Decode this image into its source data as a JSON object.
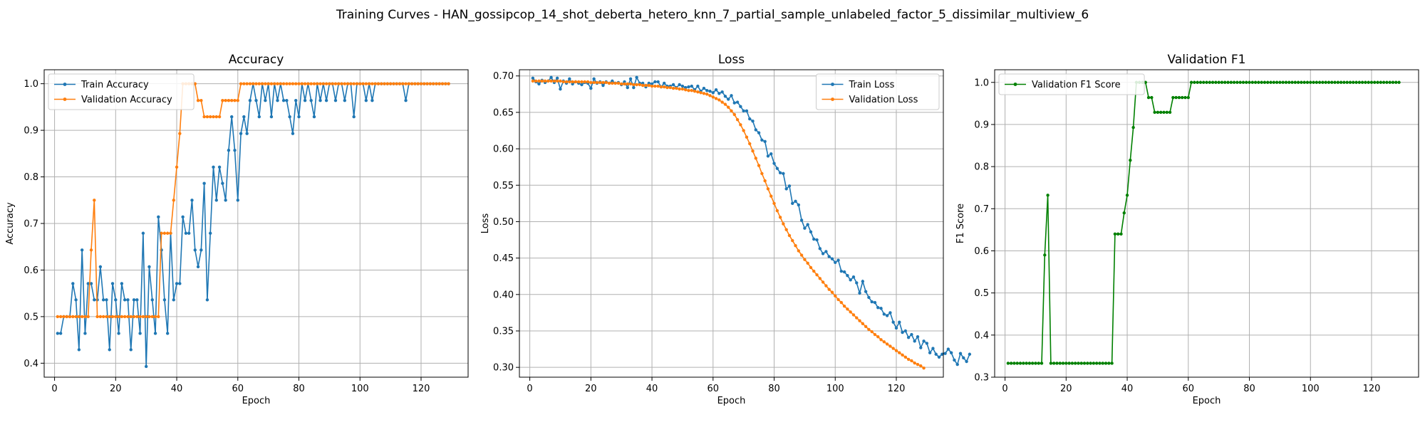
{
  "figure": {
    "suptitle": "Training Curves - HAN_gossipcop_14_shot_deberta_hetero_knn_7_partial_sample_unlabeled_factor_5_dissimilar_multiview_6"
  },
  "colors": {
    "blue": "#1f77b4",
    "orange": "#ff7f0e",
    "green": "#008000",
    "grid": "#b0b0b0"
  },
  "chart_data": [
    {
      "type": "line",
      "title": "Accuracy",
      "xlabel": "Epoch",
      "ylabel": "Accuracy",
      "xlim": [
        -3.4,
        135.4
      ],
      "ylim": [
        0.37,
        1.03
      ],
      "xticks": [
        0,
        20,
        40,
        60,
        80,
        100,
        120
      ],
      "yticks": [
        0.4,
        0.5,
        0.6,
        0.7,
        0.8,
        0.9,
        1.0
      ],
      "ytick_labels": [
        "0.4",
        "0.5",
        "0.6",
        "0.7",
        "0.8",
        "0.9",
        "1.0"
      ],
      "grid": true,
      "legend": "upper left",
      "series": [
        {
          "name": "Train Accuracy",
          "color": "#1f77b4",
          "y": [
            0.464,
            0.464,
            0.5,
            0.5,
            0.5,
            0.571,
            0.536,
            0.429,
            0.643,
            0.464,
            0.571,
            0.571,
            0.536,
            0.536,
            0.607,
            0.536,
            0.536,
            0.429,
            0.571,
            0.536,
            0.464,
            0.571,
            0.536,
            0.536,
            0.429,
            0.536,
            0.536,
            0.464,
            0.679,
            0.393,
            0.607,
            0.536,
            0.464,
            0.714,
            0.643,
            0.536,
            0.464,
            0.679,
            0.536,
            0.571,
            0.571,
            0.714,
            0.679,
            0.679,
            0.75,
            0.643,
            0.607,
            0.643,
            0.786,
            0.536,
            0.679,
            0.821,
            0.75,
            0.821,
            0.786,
            0.75,
            0.857,
            0.929,
            0.857,
            0.75,
            0.893,
            0.929,
            0.893,
            0.964,
            1.0,
            0.964,
            0.929,
            1.0,
            0.964,
            1.0,
            0.929,
            1.0,
            0.964,
            1.0,
            0.964,
            0.964,
            0.929,
            0.893,
            0.964,
            0.929,
            1.0,
            0.964,
            1.0,
            0.964,
            0.929,
            1.0,
            0.964,
            1.0,
            0.964,
            1.0,
            1.0,
            0.964,
            1.0,
            1.0,
            0.964,
            1.0,
            1.0,
            0.929,
            1.0,
            1.0,
            1.0,
            0.964,
            1.0,
            0.964,
            1.0,
            1.0,
            1.0,
            1.0,
            1.0,
            1.0,
            1.0,
            1.0,
            1.0,
            1.0,
            0.964,
            1.0,
            1.0,
            1.0,
            1.0,
            1.0,
            1.0,
            1.0,
            1.0,
            1.0,
            1.0,
            1.0,
            1.0,
            1.0,
            1.0
          ]
        },
        {
          "name": "Validation Accuracy",
          "color": "#ff7f0e",
          "y": [
            0.5,
            0.5,
            0.5,
            0.5,
            0.5,
            0.5,
            0.5,
            0.5,
            0.5,
            0.5,
            0.5,
            0.643,
            0.75,
            0.5,
            0.5,
            0.5,
            0.5,
            0.5,
            0.5,
            0.5,
            0.5,
            0.5,
            0.5,
            0.5,
            0.5,
            0.5,
            0.5,
            0.5,
            0.5,
            0.5,
            0.5,
            0.5,
            0.5,
            0.5,
            0.679,
            0.679,
            0.679,
            0.679,
            0.75,
            0.821,
            0.893,
            1.0,
            1.0,
            1.0,
            1.0,
            1.0,
            0.964,
            0.964,
            0.929,
            0.929,
            0.929,
            0.929,
            0.929,
            0.929,
            0.964,
            0.964,
            0.964,
            0.964,
            0.964,
            0.964,
            1.0,
            1.0,
            1.0,
            1.0,
            1.0,
            1.0,
            1.0,
            1.0,
            1.0,
            1.0,
            1.0,
            1.0,
            1.0,
            1.0,
            1.0,
            1.0,
            1.0,
            1.0,
            1.0,
            1.0,
            1.0,
            1.0,
            1.0,
            1.0,
            1.0,
            1.0,
            1.0,
            1.0,
            1.0,
            1.0,
            1.0,
            1.0,
            1.0,
            1.0,
            1.0,
            1.0,
            1.0,
            1.0,
            1.0,
            1.0,
            1.0,
            1.0,
            1.0,
            1.0,
            1.0,
            1.0,
            1.0,
            1.0,
            1.0,
            1.0,
            1.0,
            1.0,
            1.0,
            1.0,
            1.0,
            1.0,
            1.0,
            1.0,
            1.0,
            1.0,
            1.0,
            1.0,
            1.0,
            1.0,
            1.0,
            1.0,
            1.0,
            1.0,
            1.0
          ]
        }
      ]
    },
    {
      "type": "line",
      "title": "Loss",
      "xlabel": "Epoch",
      "ylabel": "Loss",
      "xlim": [
        -3.4,
        135.4
      ],
      "ylim": [
        0.2865,
        0.7085
      ],
      "xticks": [
        0,
        20,
        40,
        60,
        80,
        100,
        120
      ],
      "yticks": [
        0.3,
        0.35,
        0.4,
        0.45,
        0.5,
        0.55,
        0.6,
        0.65,
        0.7
      ],
      "ytick_labels": [
        "0.30",
        "0.35",
        "0.40",
        "0.45",
        "0.50",
        "0.55",
        "0.60",
        "0.65",
        "0.70"
      ],
      "grid": true,
      "legend": "upper right",
      "series": [
        {
          "name": "Train Loss",
          "color": "#1f77b4",
          "y": [
            0.697,
            0.692,
            0.689,
            0.694,
            0.691,
            0.693,
            0.698,
            0.691,
            0.697,
            0.682,
            0.693,
            0.69,
            0.696,
            0.689,
            0.692,
            0.69,
            0.688,
            0.691,
            0.69,
            0.683,
            0.696,
            0.69,
            0.692,
            0.687,
            0.692,
            0.69,
            0.693,
            0.69,
            0.691,
            0.688,
            0.692,
            0.684,
            0.696,
            0.684,
            0.698,
            0.69,
            0.69,
            0.685,
            0.69,
            0.689,
            0.692,
            0.692,
            0.685,
            0.69,
            0.686,
            0.686,
            0.688,
            0.684,
            0.688,
            0.686,
            0.684,
            0.685,
            0.686,
            0.681,
            0.686,
            0.679,
            0.683,
            0.68,
            0.679,
            0.677,
            0.681,
            0.676,
            0.678,
            0.672,
            0.668,
            0.673,
            0.663,
            0.664,
            0.658,
            0.652,
            0.652,
            0.641,
            0.638,
            0.626,
            0.622,
            0.612,
            0.61,
            0.59,
            0.593,
            0.58,
            0.573,
            0.567,
            0.566,
            0.545,
            0.549,
            0.525,
            0.528,
            0.523,
            0.502,
            0.491,
            0.496,
            0.486,
            0.476,
            0.475,
            0.463,
            0.456,
            0.459,
            0.452,
            0.449,
            0.444,
            0.447,
            0.432,
            0.431,
            0.426,
            0.42,
            0.424,
            0.416,
            0.402,
            0.418,
            0.404,
            0.396,
            0.39,
            0.389,
            0.382,
            0.381,
            0.373,
            0.371,
            0.375,
            0.362,
            0.354,
            0.362,
            0.348,
            0.35,
            0.341,
            0.345,
            0.336,
            0.342,
            0.327,
            0.336,
            0.333,
            0.32,
            0.326,
            0.318,
            0.314,
            0.318,
            0.319,
            0.325,
            0.32,
            0.31,
            0.304,
            0.319,
            0.313,
            0.308,
            0.318
          ]
        },
        {
          "name": "Validation Loss",
          "color": "#ff7f0e",
          "y": [
            0.693,
            0.693,
            0.693,
            0.693,
            0.693,
            0.693,
            0.693,
            0.693,
            0.693,
            0.693,
            0.692,
            0.692,
            0.692,
            0.692,
            0.692,
            0.692,
            0.692,
            0.692,
            0.692,
            0.691,
            0.691,
            0.691,
            0.691,
            0.691,
            0.691,
            0.69,
            0.69,
            0.69,
            0.69,
            0.689,
            0.689,
            0.689,
            0.689,
            0.688,
            0.688,
            0.688,
            0.687,
            0.687,
            0.687,
            0.686,
            0.686,
            0.686,
            0.685,
            0.685,
            0.684,
            0.684,
            0.683,
            0.683,
            0.682,
            0.682,
            0.681,
            0.68,
            0.68,
            0.679,
            0.678,
            0.677,
            0.676,
            0.675,
            0.673,
            0.671,
            0.669,
            0.667,
            0.664,
            0.661,
            0.657,
            0.652,
            0.647,
            0.64,
            0.633,
            0.625,
            0.616,
            0.607,
            0.597,
            0.587,
            0.577,
            0.566,
            0.556,
            0.545,
            0.535,
            0.525,
            0.515,
            0.506,
            0.497,
            0.489,
            0.481,
            0.474,
            0.467,
            0.46,
            0.454,
            0.448,
            0.443,
            0.437,
            0.432,
            0.427,
            0.422,
            0.417,
            0.412,
            0.407,
            0.403,
            0.398,
            0.393,
            0.389,
            0.384,
            0.38,
            0.376,
            0.372,
            0.368,
            0.364,
            0.36,
            0.356,
            0.352,
            0.349,
            0.345,
            0.342,
            0.338,
            0.335,
            0.332,
            0.329,
            0.326,
            0.323,
            0.32,
            0.317,
            0.314,
            0.311,
            0.309,
            0.306,
            0.304,
            0.302,
            0.299
          ]
        }
      ]
    },
    {
      "type": "line",
      "title": "Validation F1",
      "xlabel": "Epoch",
      "ylabel": "F1 Score",
      "xlim": [
        -3.4,
        135.4
      ],
      "ylim": [
        0.3,
        1.03
      ],
      "xticks": [
        0,
        20,
        40,
        60,
        80,
        100,
        120
      ],
      "yticks": [
        0.3,
        0.4,
        0.5,
        0.6,
        0.7,
        0.8,
        0.9,
        1.0
      ],
      "ytick_labels": [
        "0.3",
        "0.4",
        "0.5",
        "0.6",
        "0.7",
        "0.8",
        "0.9",
        "1.0"
      ],
      "grid": true,
      "legend": "upper left",
      "series": [
        {
          "name": "Validation F1 Score",
          "color": "#008000",
          "y": [
            0.333,
            0.333,
            0.333,
            0.333,
            0.333,
            0.333,
            0.333,
            0.333,
            0.333,
            0.333,
            0.333,
            0.333,
            0.59,
            0.732,
            0.333,
            0.333,
            0.333,
            0.333,
            0.333,
            0.333,
            0.333,
            0.333,
            0.333,
            0.333,
            0.333,
            0.333,
            0.333,
            0.333,
            0.333,
            0.333,
            0.333,
            0.333,
            0.333,
            0.333,
            0.333,
            0.64,
            0.64,
            0.64,
            0.69,
            0.732,
            0.815,
            0.893,
            1.0,
            1.0,
            1.0,
            1.0,
            0.964,
            0.964,
            0.929,
            0.929,
            0.929,
            0.929,
            0.929,
            0.929,
            0.964,
            0.964,
            0.964,
            0.964,
            0.964,
            0.964,
            1.0,
            1.0,
            1.0,
            1.0,
            1.0,
            1.0,
            1.0,
            1.0,
            1.0,
            1.0,
            1.0,
            1.0,
            1.0,
            1.0,
            1.0,
            1.0,
            1.0,
            1.0,
            1.0,
            1.0,
            1.0,
            1.0,
            1.0,
            1.0,
            1.0,
            1.0,
            1.0,
            1.0,
            1.0,
            1.0,
            1.0,
            1.0,
            1.0,
            1.0,
            1.0,
            1.0,
            1.0,
            1.0,
            1.0,
            1.0,
            1.0,
            1.0,
            1.0,
            1.0,
            1.0,
            1.0,
            1.0,
            1.0,
            1.0,
            1.0,
            1.0,
            1.0,
            1.0,
            1.0,
            1.0,
            1.0,
            1.0,
            1.0,
            1.0,
            1.0,
            1.0,
            1.0,
            1.0,
            1.0,
            1.0,
            1.0,
            1.0,
            1.0,
            1.0
          ]
        }
      ]
    }
  ]
}
